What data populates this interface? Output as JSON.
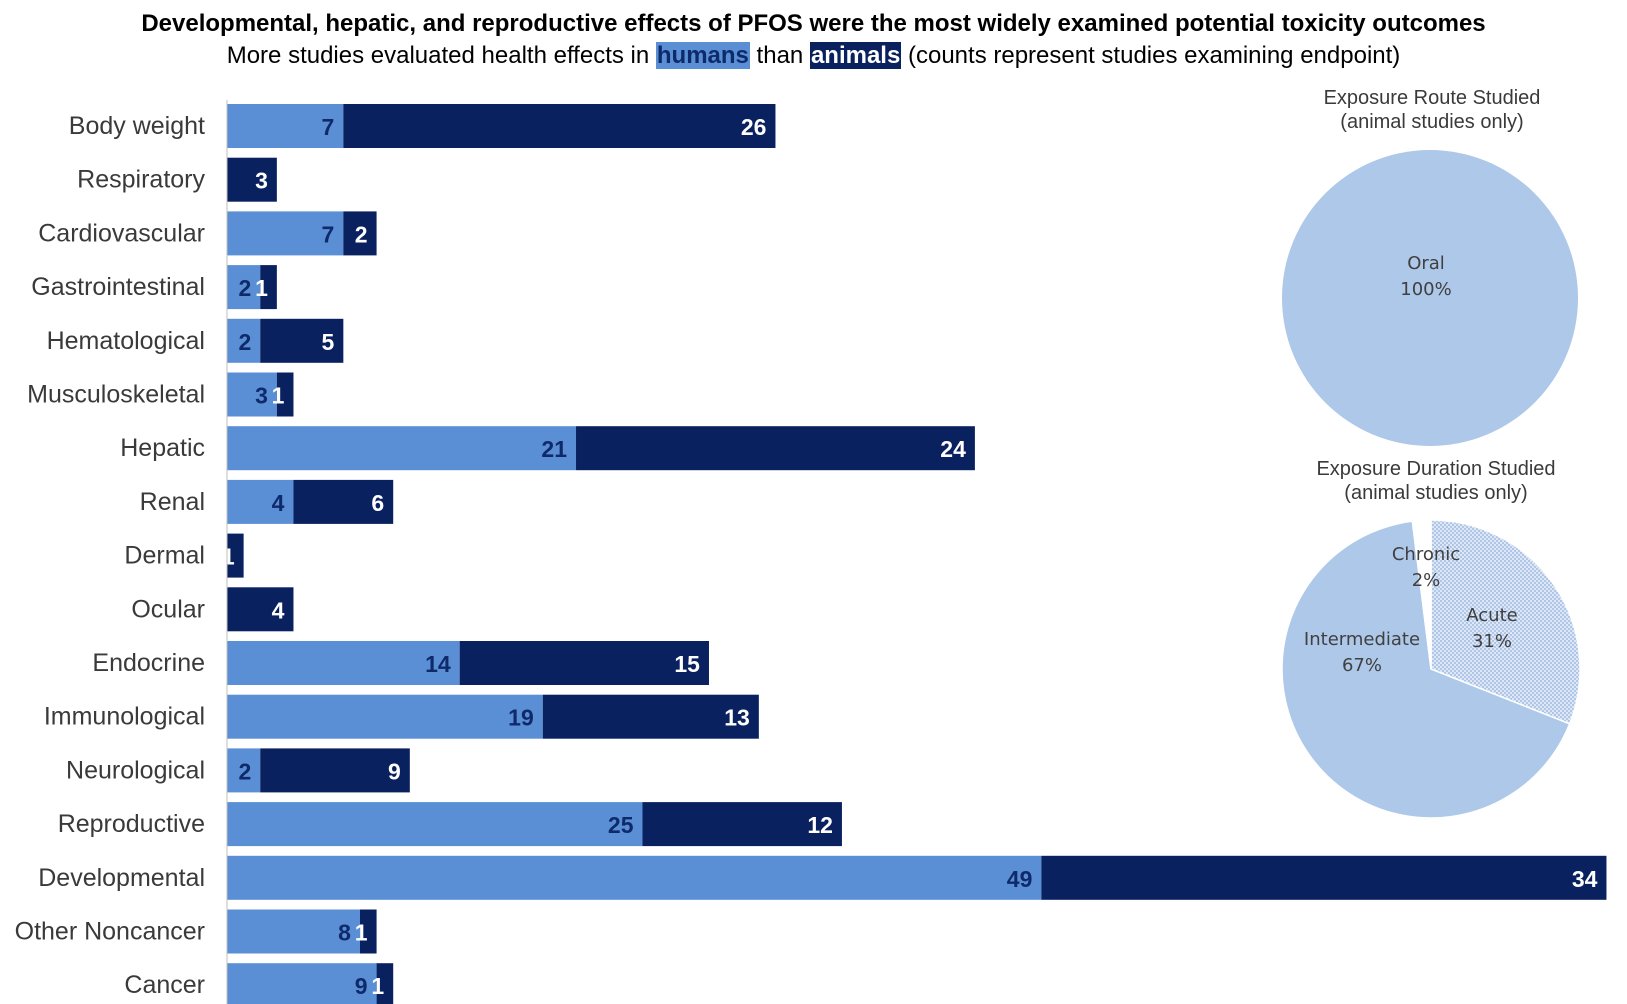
{
  "header": {
    "title": "Developmental, hepatic, and reproductive effects of PFOS were the most widely examined potential toxicity outcomes",
    "subtitle_pre": "More studies evaluated health effects in ",
    "subtitle_humans": "humans",
    "subtitle_mid": " than ",
    "subtitle_animals": "animals",
    "subtitle_post": " (counts represent studies examining endpoint)"
  },
  "colors": {
    "humans": "#5a8fd6",
    "animals": "#0a2160",
    "pie_light": "#adc8e8",
    "pie_pattern": "#a3bfe3",
    "pie_white": "#ffffff"
  },
  "chart_data": [
    {
      "type": "bar",
      "orientation": "horizontal",
      "stacked": true,
      "categories": [
        "Body weight",
        "Respiratory",
        "Cardiovascular",
        "Gastrointestinal",
        "Hematological",
        "Musculoskeletal",
        "Hepatic",
        "Renal",
        "Dermal",
        "Ocular",
        "Endocrine",
        "Immunological",
        "Neurological",
        "Reproductive",
        "Developmental",
        "Other Noncancer",
        "Cancer"
      ],
      "series": [
        {
          "name": "humans",
          "values": [
            7,
            0,
            7,
            2,
            2,
            3,
            21,
            4,
            0,
            0,
            14,
            19,
            2,
            25,
            49,
            8,
            9
          ]
        },
        {
          "name": "animals",
          "values": [
            26,
            3,
            2,
            1,
            5,
            1,
            24,
            6,
            1,
            4,
            15,
            13,
            9,
            12,
            34,
            1,
            1
          ]
        }
      ],
      "xlim": [
        0,
        83
      ]
    },
    {
      "type": "pie",
      "title": "Exposure Route Studied",
      "subtitle": "(animal studies only)",
      "slices": [
        {
          "label": "Oral",
          "value": 100,
          "value_label": "100%"
        }
      ]
    },
    {
      "type": "pie",
      "title": "Exposure Duration Studied",
      "subtitle": "(animal studies only)",
      "slices": [
        {
          "label": "Acute",
          "value": 31,
          "value_label": "31%"
        },
        {
          "label": "Intermediate",
          "value": 67,
          "value_label": "67%"
        },
        {
          "label": "Chronic",
          "value": 2,
          "value_label": "2%"
        }
      ]
    }
  ]
}
